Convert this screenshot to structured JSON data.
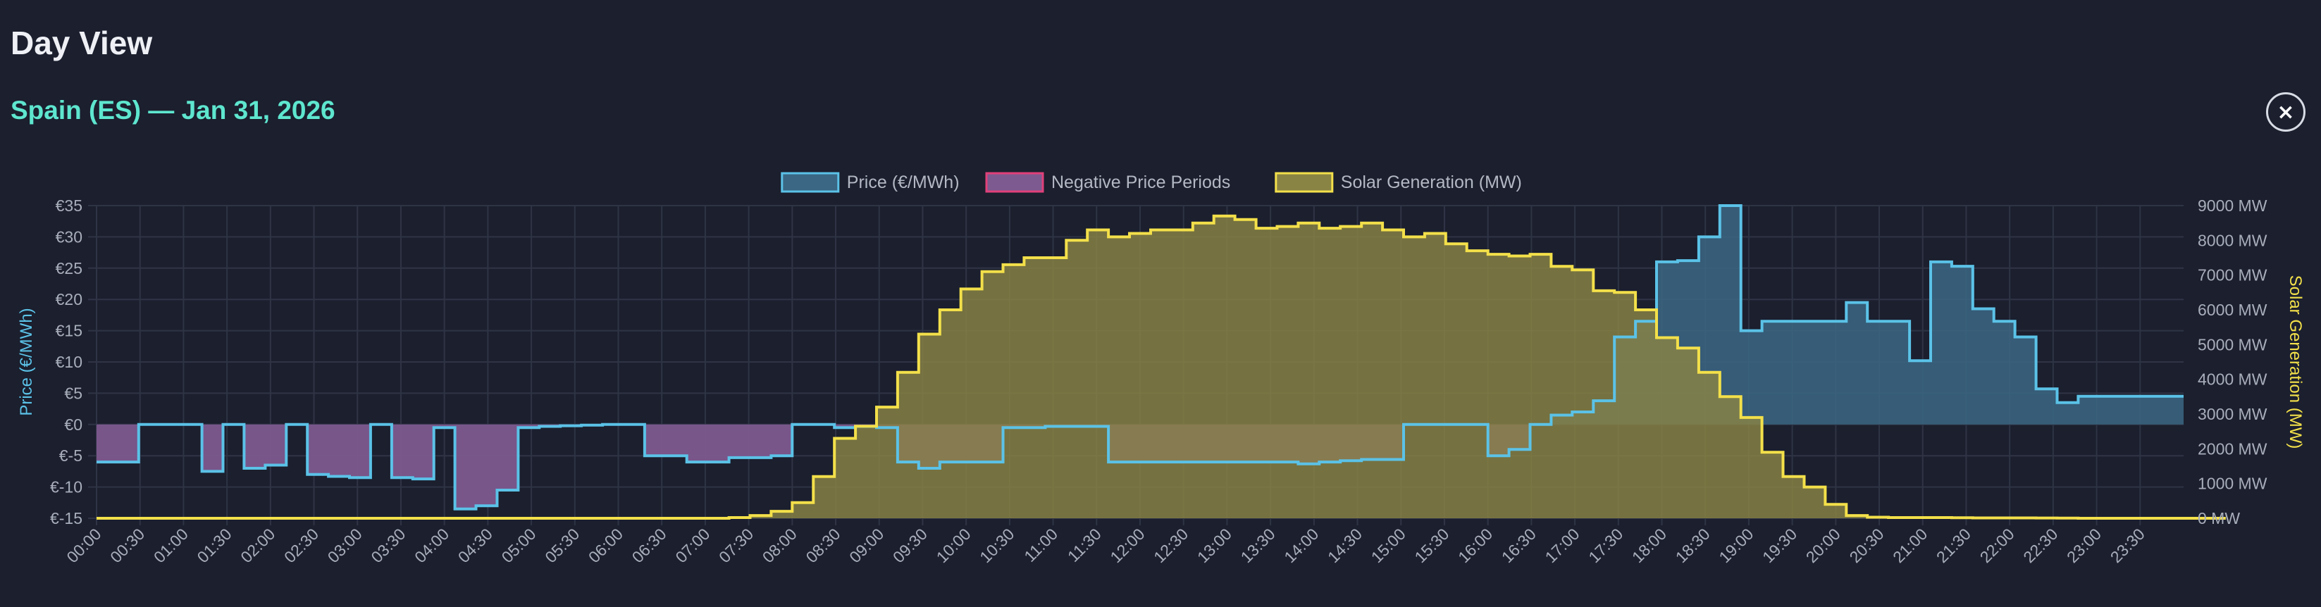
{
  "header": {
    "title": "Day View",
    "subtitle": "Spain (ES) — Jan 31, 2026",
    "close_label": "×"
  },
  "colors": {
    "background": "#1b1f2e",
    "price": "#5bc2e7",
    "price_fill": "#3b6784",
    "negative": "#e0407a",
    "negative_fill": "#7d5a8f",
    "solar": "#f3e04a",
    "solar_fill": "#8a8444",
    "grid": "#2f3445",
    "subtitle": "#5ee6cf"
  },
  "chart_data": {
    "type": "line",
    "step": true,
    "grid": true,
    "legend_placement": "top-center",
    "legend": [
      {
        "key": "price",
        "label": "Price (€/MWh)"
      },
      {
        "key": "negative",
        "label": "Negative Price Periods"
      },
      {
        "key": "solar",
        "label": "Solar Generation (MW)"
      }
    ],
    "x_ticks": [
      "00:00",
      "00:30",
      "01:00",
      "01:30",
      "02:00",
      "02:30",
      "03:00",
      "03:30",
      "04:00",
      "04:30",
      "05:00",
      "05:30",
      "06:00",
      "06:30",
      "07:00",
      "07:30",
      "08:00",
      "08:30",
      "09:00",
      "09:30",
      "10:00",
      "10:30",
      "11:00",
      "11:30",
      "12:00",
      "12:30",
      "13:00",
      "13:30",
      "14:00",
      "14:30",
      "15:00",
      "15:30",
      "16:00",
      "16:30",
      "17:00",
      "17:30",
      "18:00",
      "18:30",
      "19:00",
      "19:30",
      "20:00",
      "20:30",
      "21:00",
      "21:30",
      "22:00",
      "22:30",
      "23:00",
      "23:30"
    ],
    "y_left": {
      "label": "Price (€/MWh)",
      "min": -15,
      "max": 35,
      "ticks": [
        35,
        30,
        25,
        20,
        15,
        10,
        5,
        0,
        -5,
        -10,
        -15
      ],
      "tick_labels": [
        "€35",
        "€30",
        "€25",
        "€20",
        "€15",
        "€10",
        "€5",
        "€0",
        "€-5",
        "€-10",
        "€-15"
      ]
    },
    "y_right": {
      "label": "Solar Generation (MW)",
      "min": 0,
      "max": 9000,
      "ticks": [
        9000,
        8000,
        7000,
        6000,
        5000,
        4000,
        3000,
        2000,
        1000,
        0
      ],
      "tick_labels": [
        "9000 MW",
        "8000 MW",
        "7000 MW",
        "6000 MW",
        "5000 MW",
        "4000 MW",
        "3000 MW",
        "2000 MW",
        "1000 MW",
        "0 MW"
      ]
    },
    "interval_minutes": 15,
    "series": [
      {
        "key": "price",
        "name": "Price (€/MWh)",
        "values": [
          -6,
          -6,
          -6,
          -6,
          0,
          0,
          0,
          0,
          0,
          0,
          -7.5,
          -7.5,
          0,
          0,
          -7,
          -7,
          -6.5,
          -6.5,
          0,
          0,
          -8,
          -8,
          -8.3,
          -8.3,
          -8.5,
          -8.5,
          0,
          0,
          -8.5,
          -8.5,
          -8.7,
          -8.7,
          -0.5,
          -0.5,
          -13.5,
          -13.5,
          -13,
          -13,
          -10.5,
          -10.5,
          -0.5,
          -0.5,
          -0.3,
          -0.3,
          -0.2,
          -0.2,
          -0.1,
          -0.1,
          0,
          0,
          0,
          0,
          -5,
          -5,
          -5,
          -5,
          -6,
          -6,
          -6,
          -6,
          -5.3,
          -5.3,
          -5.3,
          -5.3,
          -5,
          -5,
          0,
          0,
          0,
          0,
          -0.5,
          -0.5,
          -0.3,
          -0.3,
          -0.5,
          -0.5,
          -6,
          -6,
          -7,
          -7,
          -6,
          -6,
          -6,
          -6,
          -6,
          -6,
          -0.5,
          -0.5,
          -0.5,
          -0.5,
          -0.3,
          -0.3,
          -0.3,
          -0.3,
          -0.3,
          -0.3,
          -6,
          -6,
          -6,
          -6,
          -6,
          -6,
          -6,
          -6,
          -6,
          -6,
          -6,
          -6,
          -6,
          -6,
          -6,
          -6,
          -6,
          -6,
          -6.3,
          -6.3,
          -6,
          -6,
          -5.8,
          -5.8,
          -5.6,
          -5.6,
          -5.6,
          -5.6,
          0,
          0,
          0,
          0,
          0,
          0,
          0,
          0,
          -5,
          -5,
          -4,
          -4,
          0,
          0,
          1.5,
          1.5,
          2,
          2,
          3.8,
          3.8,
          14,
          14,
          16.5,
          16.5,
          26,
          26,
          26.2,
          26.2,
          30,
          30,
          35,
          35,
          15,
          15,
          16.5,
          16.5,
          16.5,
          16.5,
          16.5,
          16.5,
          16.5,
          16.5,
          19.5,
          19.5,
          16.5,
          16.5,
          16.5,
          16.5,
          10.2,
          10.2,
          26,
          26,
          25.3,
          25.3,
          18.5,
          18.5,
          16.5,
          16.5,
          14,
          14,
          5.7,
          5.7,
          3.5,
          3.5,
          4.5,
          4.5,
          4.5,
          4.5,
          4.5,
          4.5,
          4.5,
          4.5,
          4.5,
          4.5
        ]
      },
      {
        "key": "solar",
        "name": "Solar Generation (MW)",
        "values": [
          0,
          0,
          0,
          0,
          0,
          0,
          0,
          0,
          0,
          0,
          0,
          0,
          0,
          0,
          0,
          0,
          0,
          0,
          0,
          0,
          0,
          0,
          0,
          0,
          0,
          0,
          0,
          0,
          0,
          0,
          0,
          0,
          0,
          0,
          0,
          0,
          0,
          0,
          0,
          0,
          0,
          0,
          0,
          0,
          0,
          0,
          0,
          0,
          0,
          0,
          0,
          0,
          0,
          0,
          0,
          0,
          0,
          0,
          0,
          0,
          20,
          20,
          80,
          80,
          200,
          200,
          450,
          450,
          1200,
          1200,
          2300,
          2300,
          2650,
          2650,
          3200,
          3200,
          4200,
          4200,
          5300,
          5300,
          6000,
          6000,
          6600,
          6600,
          7100,
          7100,
          7300,
          7300,
          7500,
          7500,
          7500,
          7500,
          8000,
          8000,
          8300,
          8300,
          8100,
          8100,
          8200,
          8200,
          8300,
          8300,
          8300,
          8300,
          8500,
          8500,
          8700,
          8700,
          8600,
          8600,
          8350,
          8350,
          8400,
          8400,
          8500,
          8500,
          8350,
          8350,
          8400,
          8400,
          8500,
          8500,
          8300,
          8300,
          8100,
          8100,
          8200,
          8200,
          7900,
          7900,
          7700,
          7700,
          7600,
          7600,
          7550,
          7550,
          7600,
          7600,
          7250,
          7250,
          7150,
          7150,
          6550,
          6550,
          6500,
          6500,
          6000,
          6000,
          5200,
          5200,
          4900,
          4900,
          4200,
          4200,
          3500,
          3500,
          2900,
          2900,
          1900,
          1900,
          1200,
          1200,
          900,
          900,
          400,
          400,
          80,
          80,
          30,
          30,
          20,
          20,
          20,
          20,
          20,
          20,
          15,
          15,
          10,
          10,
          10,
          10,
          10,
          10,
          8,
          8,
          5,
          5,
          0,
          0,
          0,
          0,
          0,
          0,
          0,
          0,
          0,
          0,
          0,
          0,
          0,
          0
        ]
      }
    ]
  }
}
